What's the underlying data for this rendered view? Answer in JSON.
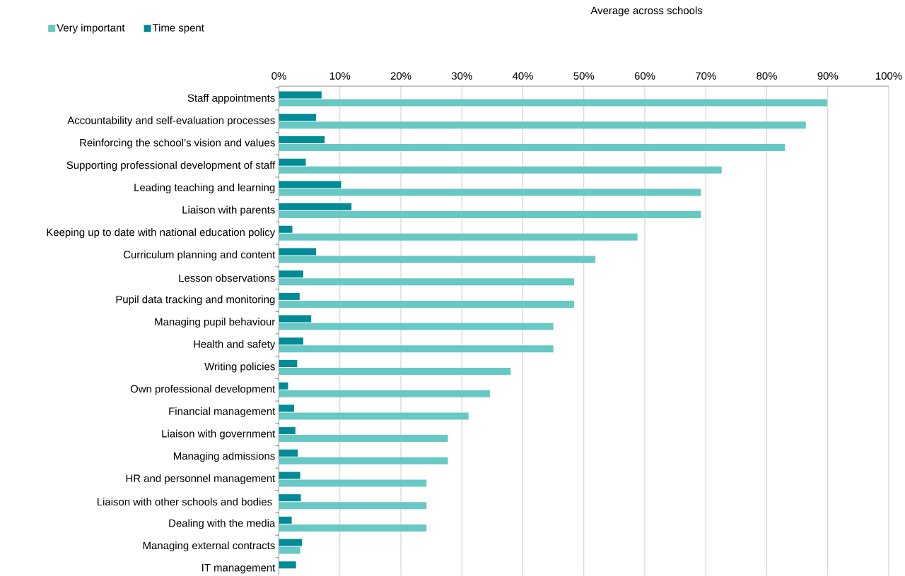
{
  "chart_data": {
    "type": "bar",
    "orientation": "horizontal",
    "title": "Average  across schools",
    "categories": [
      "Staff appointments",
      "Accountability and self-evaluation processes",
      "Reinforcing the school’s vision and values",
      "Supporting professional development of staff",
      "Leading teaching and learning",
      "Liaison with parents",
      "Keeping up to date with national education policy",
      "Curriculum planning and content",
      "Lesson observations",
      "Pupil data tracking and monitoring",
      "Managing pupil behaviour",
      "Health and safety",
      "Writing policies",
      "Own professional development",
      "Financial management",
      "Liaison with government",
      "Managing admissions",
      "HR and personnel management",
      "Liaison with other schools and bodies ",
      "Dealing with the media",
      "Managing external contracts",
      "IT management"
    ],
    "series": [
      {
        "name": "Very important",
        "color": "#68c8c4",
        "values": [
          89.9,
          86.4,
          83.0,
          72.6,
          69.2,
          69.2,
          58.8,
          51.9,
          48.4,
          48.4,
          45.0,
          45.0,
          38.0,
          34.6,
          31.1,
          27.7,
          27.7,
          24.2,
          24.2,
          24.2,
          3.5,
          0
        ]
      },
      {
        "name": "Time spent",
        "color": "#008b96",
        "values": [
          7.0,
          6.1,
          7.5,
          4.4,
          10.2,
          11.9,
          2.2,
          6.1,
          4.0,
          3.4,
          5.3,
          4.0,
          3.0,
          1.5,
          2.5,
          2.7,
          3.1,
          3.5,
          3.6,
          2.1,
          3.8,
          2.8
        ]
      }
    ],
    "xlim": [
      0,
      100
    ],
    "xticks": [
      {
        "value": 0,
        "label": "0%"
      },
      {
        "value": 10,
        "label": "10%"
      },
      {
        "value": 20,
        "label": "20%"
      },
      {
        "value": 30,
        "label": "30%"
      },
      {
        "value": 40,
        "label": "40%"
      },
      {
        "value": 50,
        "label": "50%"
      },
      {
        "value": 60,
        "label": "60%"
      },
      {
        "value": 70,
        "label": "70%"
      },
      {
        "value": 80,
        "label": "80%"
      },
      {
        "value": 90,
        "label": "90%"
      },
      {
        "value": 100,
        "label": "100%"
      }
    ],
    "grid": "x",
    "legend": "top left"
  }
}
